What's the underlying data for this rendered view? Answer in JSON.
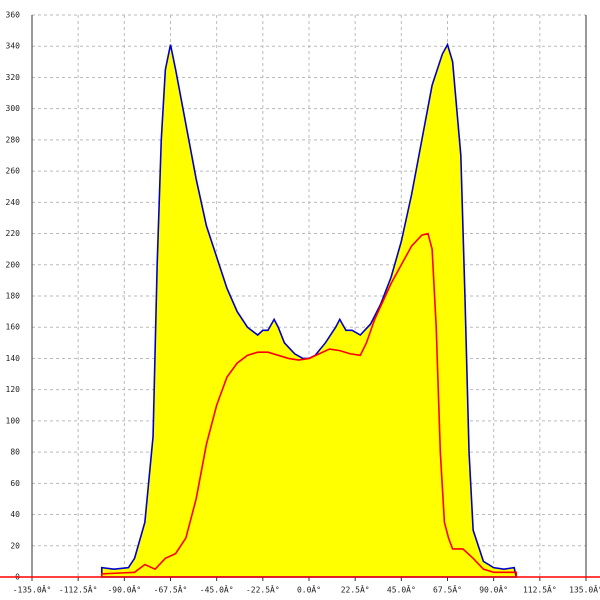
{
  "chart_data": {
    "type": "area",
    "xlim": [
      -135,
      135
    ],
    "ylim": [
      0,
      360
    ],
    "xticks": [
      {
        "value": -135,
        "label": "-135.0Â°"
      },
      {
        "value": -112.5,
        "label": "-112.5Â°"
      },
      {
        "value": -90,
        "label": "-90.0Â°"
      },
      {
        "value": -67.5,
        "label": "-67.5Â°"
      },
      {
        "value": -45,
        "label": "-45.0Â°"
      },
      {
        "value": -22.5,
        "label": "-22.5Â°"
      },
      {
        "value": 0,
        "label": "0.0Â°"
      },
      {
        "value": 22.5,
        "label": "22.5Â°"
      },
      {
        "value": 45,
        "label": "45.0Â°"
      },
      {
        "value": 67.5,
        "label": "67.5Â°"
      },
      {
        "value": 90,
        "label": "90.0Â°"
      },
      {
        "value": 112.5,
        "label": "112.5Â°"
      },
      {
        "value": 135,
        "label": "135.0Â°"
      }
    ],
    "yticks": [
      0,
      20,
      40,
      60,
      80,
      100,
      120,
      140,
      160,
      180,
      200,
      220,
      240,
      260,
      280,
      300,
      320,
      340,
      360
    ],
    "grid": true,
    "series": [
      {
        "color": "#0000cc",
        "fill": "#ffff00",
        "x": [
          -101,
          -101,
          -95,
          -88,
          -85,
          -80,
          -76,
          -74,
          -72,
          -70,
          -67.5,
          -65,
          -60,
          -55,
          -50,
          -45,
          -40,
          -35,
          -30,
          -25,
          -22.5,
          -20,
          -17,
          -15,
          -12,
          -7,
          -3,
          0,
          3,
          8,
          13,
          15,
          18,
          21,
          25,
          30,
          35,
          40,
          45,
          50,
          55,
          60,
          65,
          67.5,
          70,
          72,
          74,
          76,
          78,
          80,
          85,
          90,
          95,
          100,
          101
        ],
        "values": [
          0,
          6,
          5,
          6,
          12,
          35,
          90,
          200,
          280,
          325,
          341,
          325,
          290,
          255,
          225,
          205,
          185,
          170,
          160,
          155,
          158,
          158,
          165,
          160,
          150,
          143,
          140,
          140,
          142,
          150,
          160,
          165,
          158,
          158,
          155,
          162,
          175,
          192,
          215,
          245,
          280,
          315,
          335,
          341,
          330,
          300,
          270,
          180,
          80,
          30,
          10,
          6,
          5,
          6,
          0
        ]
      },
      {
        "color": "#ff0000",
        "x": [
          -101,
          -101,
          -85,
          -80,
          -75,
          -70,
          -65,
          -60,
          -55,
          -50,
          -45,
          -40,
          -35,
          -30,
          -25,
          -20,
          -15,
          -10,
          -5,
          0,
          5,
          10,
          15,
          20,
          25,
          28,
          32,
          40,
          45,
          50,
          55,
          58,
          60,
          62,
          64,
          66,
          68,
          70,
          75,
          80,
          85,
          90,
          101,
          101
        ],
        "values": [
          0,
          2,
          3,
          8,
          5,
          12,
          15,
          25,
          50,
          85,
          110,
          128,
          137,
          142,
          144,
          144,
          142,
          140,
          139,
          140,
          143,
          146,
          145,
          143,
          142,
          150,
          165,
          188,
          200,
          212,
          219,
          220,
          210,
          160,
          80,
          35,
          25,
          18,
          18,
          12,
          5,
          3,
          3,
          0
        ]
      }
    ]
  }
}
